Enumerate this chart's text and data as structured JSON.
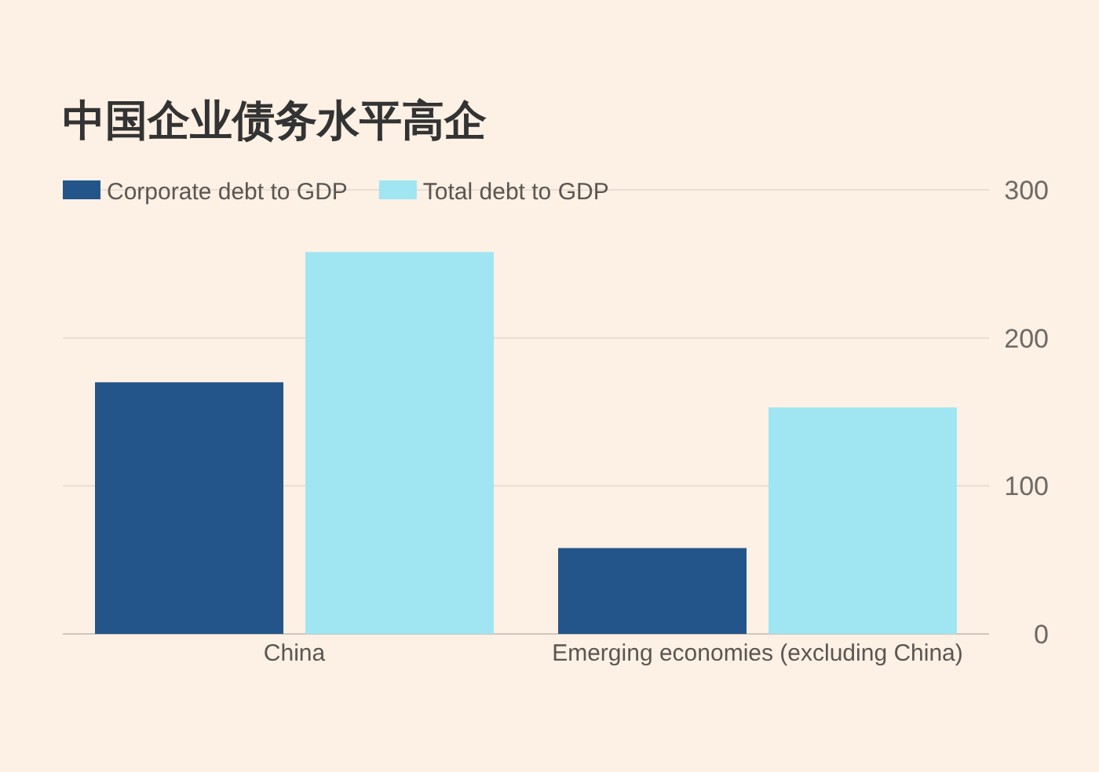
{
  "chart_data": {
    "type": "bar",
    "title": "中国企业债务水平高企",
    "categories": [
      "China",
      "Emerging economies (excluding China)"
    ],
    "series": [
      {
        "name": "Corporate debt to GDP",
        "color": "#24558a",
        "values": [
          170,
          58
        ]
      },
      {
        "name": "Total debt to GDP",
        "color": "#a0e5f2",
        "values": [
          258,
          153
        ]
      }
    ],
    "ylim": [
      0,
      300
    ],
    "yticks": [
      0,
      100,
      200,
      300
    ],
    "grid": "y",
    "legend": "top left"
  }
}
